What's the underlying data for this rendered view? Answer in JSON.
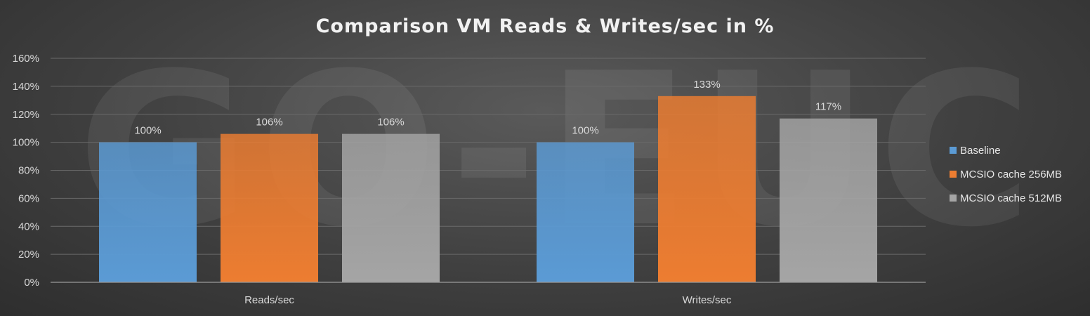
{
  "watermark": "GO-EUC",
  "chart_data": {
    "type": "bar",
    "title": "Comparison VM Reads & Writes/sec in %",
    "categories": [
      "Reads/sec",
      "Writes/sec"
    ],
    "series": [
      {
        "name": "Baseline",
        "color": "#5b9bd5",
        "values": [
          100,
          100
        ],
        "labels": [
          "100%",
          "100%"
        ]
      },
      {
        "name": "MCSIO cache 256MB",
        "color": "#ed7d31",
        "values": [
          106,
          133
        ],
        "labels": [
          "106%",
          "133%"
        ]
      },
      {
        "name": "MCSIO cache 512MB",
        "color": "#a5a5a5",
        "values": [
          106,
          117
        ],
        "labels": [
          "106%",
          "117%"
        ]
      }
    ],
    "ylim": [
      0,
      160
    ],
    "yticks": [
      0,
      20,
      40,
      60,
      80,
      100,
      120,
      140,
      160
    ],
    "ytick_labels": [
      "0%",
      "20%",
      "40%",
      "60%",
      "80%",
      "100%",
      "120%",
      "140%",
      "160%"
    ],
    "grid": true,
    "legend_position": "right"
  }
}
